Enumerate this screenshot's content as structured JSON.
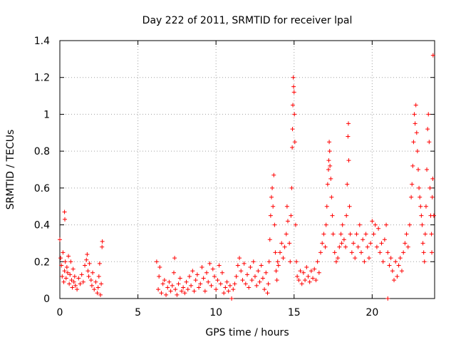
{
  "chart_data": {
    "type": "scatter",
    "title": "Day 222 of 2011, SRMTID for receiver lpal",
    "xlabel": "GPS time / hours",
    "ylabel": "SRMTID / TECUs",
    "xlim": [
      0,
      24
    ],
    "ylim": [
      0,
      1.4
    ],
    "xticks": [
      0,
      5,
      10,
      15,
      20
    ],
    "yticks": [
      0,
      0.2,
      0.4,
      0.6,
      0.8,
      1,
      1.2,
      1.4
    ],
    "ytick_labels": [
      "0",
      "0.2",
      "0.4",
      "0.6",
      "0.8",
      "1",
      "1.2",
      "1.4"
    ],
    "grid": true,
    "marker": "+",
    "color": "#ff0000",
    "series": [
      {
        "name": "SRMTID",
        "points": [
          [
            0.0,
            0.32
          ],
          [
            0.05,
            0.22
          ],
          [
            0.1,
            0.18
          ],
          [
            0.15,
            0.12
          ],
          [
            0.2,
            0.25
          ],
          [
            0.25,
            0.09
          ],
          [
            0.3,
            0.15
          ],
          [
            0.3,
            0.47
          ],
          [
            0.32,
            0.43
          ],
          [
            0.35,
            0.2
          ],
          [
            0.4,
            0.11
          ],
          [
            0.45,
            0.17
          ],
          [
            0.5,
            0.14
          ],
          [
            0.55,
            0.23
          ],
          [
            0.6,
            0.08
          ],
          [
            0.65,
            0.13
          ],
          [
            0.7,
            0.2
          ],
          [
            0.75,
            0.1
          ],
          [
            0.8,
            0.06
          ],
          [
            0.85,
            0.16
          ],
          [
            0.9,
            0.09
          ],
          [
            0.95,
            0.12
          ],
          [
            1.0,
            0.07
          ],
          [
            1.1,
            0.05
          ],
          [
            1.2,
            0.11
          ],
          [
            1.3,
            0.08
          ],
          [
            1.4,
            0.13
          ],
          [
            1.5,
            0.09
          ],
          [
            1.6,
            0.18
          ],
          [
            1.7,
            0.21
          ],
          [
            1.75,
            0.24
          ],
          [
            1.8,
            0.15
          ],
          [
            1.85,
            0.12
          ],
          [
            1.9,
            0.19
          ],
          [
            2.0,
            0.1
          ],
          [
            2.05,
            0.07
          ],
          [
            2.1,
            0.14
          ],
          [
            2.2,
            0.05
          ],
          [
            2.3,
            0.09
          ],
          [
            2.4,
            0.03
          ],
          [
            2.45,
            0.06
          ],
          [
            2.5,
            0.12
          ],
          [
            2.55,
            0.19
          ],
          [
            2.6,
            0.02
          ],
          [
            2.65,
            0.08
          ],
          [
            2.7,
            0.28
          ],
          [
            2.72,
            0.31
          ],
          [
            6.2,
            0.2
          ],
          [
            6.3,
            0.05
          ],
          [
            6.35,
            0.12
          ],
          [
            6.4,
            0.17
          ],
          [
            6.5,
            0.03
          ],
          [
            6.6,
            0.08
          ],
          [
            6.7,
            0.1
          ],
          [
            6.8,
            0.02
          ],
          [
            6.9,
            0.06
          ],
          [
            7.0,
            0.09
          ],
          [
            7.1,
            0.04
          ],
          [
            7.2,
            0.07
          ],
          [
            7.3,
            0.14
          ],
          [
            7.35,
            0.22
          ],
          [
            7.4,
            0.05
          ],
          [
            7.5,
            0.02
          ],
          [
            7.6,
            0.08
          ],
          [
            7.7,
            0.11
          ],
          [
            7.8,
            0.04
          ],
          [
            7.9,
            0.06
          ],
          [
            8.0,
            0.03
          ],
          [
            8.1,
            0.09
          ],
          [
            8.2,
            0.05
          ],
          [
            8.3,
            0.12
          ],
          [
            8.4,
            0.07
          ],
          [
            8.5,
            0.15
          ],
          [
            8.6,
            0.04
          ],
          [
            8.7,
            0.1
          ],
          [
            8.8,
            0.13
          ],
          [
            8.9,
            0.06
          ],
          [
            9.0,
            0.08
          ],
          [
            9.1,
            0.17
          ],
          [
            9.2,
            0.11
          ],
          [
            9.3,
            0.04
          ],
          [
            9.4,
            0.14
          ],
          [
            9.5,
            0.09
          ],
          [
            9.6,
            0.19
          ],
          [
            9.7,
            0.07
          ],
          [
            9.8,
            0.16
          ],
          [
            9.9,
            0.12
          ],
          [
            10.0,
            0.05
          ],
          [
            10.1,
            0.1
          ],
          [
            10.2,
            0.18
          ],
          [
            10.3,
            0.08
          ],
          [
            10.4,
            0.14
          ],
          [
            10.5,
            0.03
          ],
          [
            10.6,
            0.06
          ],
          [
            10.7,
            0.09
          ],
          [
            10.8,
            0.04
          ],
          [
            10.9,
            0.07
          ],
          [
            11.0,
            0.0
          ],
          [
            11.1,
            0.05
          ],
          [
            11.2,
            0.08
          ],
          [
            11.3,
            0.12
          ],
          [
            11.4,
            0.18
          ],
          [
            11.5,
            0.22
          ],
          [
            11.6,
            0.15
          ],
          [
            11.7,
            0.1
          ],
          [
            11.8,
            0.19
          ],
          [
            11.9,
            0.08
          ],
          [
            12.0,
            0.13
          ],
          [
            12.1,
            0.06
          ],
          [
            12.2,
            0.17
          ],
          [
            12.3,
            0.1
          ],
          [
            12.4,
            0.2
          ],
          [
            12.5,
            0.12
          ],
          [
            12.6,
            0.07
          ],
          [
            12.7,
            0.15
          ],
          [
            12.8,
            0.09
          ],
          [
            12.9,
            0.18
          ],
          [
            13.0,
            0.11
          ],
          [
            13.1,
            0.05
          ],
          [
            13.2,
            0.14
          ],
          [
            13.3,
            0.03
          ],
          [
            13.35,
            0.08
          ],
          [
            13.4,
            0.2
          ],
          [
            13.45,
            0.32
          ],
          [
            13.5,
            0.45
          ],
          [
            13.55,
            0.55
          ],
          [
            13.6,
            0.6
          ],
          [
            13.65,
            0.5
          ],
          [
            13.7,
            0.67
          ],
          [
            13.75,
            0.4
          ],
          [
            13.8,
            0.25
          ],
          [
            13.85,
            0.15
          ],
          [
            13.9,
            0.1
          ],
          [
            13.95,
            0.2
          ],
          [
            14.0,
            0.18
          ],
          [
            14.1,
            0.25
          ],
          [
            14.2,
            0.3
          ],
          [
            14.3,
            0.22
          ],
          [
            14.4,
            0.28
          ],
          [
            14.5,
            0.35
          ],
          [
            14.55,
            0.5
          ],
          [
            14.6,
            0.42
          ],
          [
            14.7,
            0.3
          ],
          [
            14.75,
            0.2
          ],
          [
            14.8,
            0.45
          ],
          [
            14.85,
            0.6
          ],
          [
            14.88,
            0.82
          ],
          [
            14.9,
            0.92
          ],
          [
            14.92,
            1.05
          ],
          [
            14.95,
            1.2
          ],
          [
            14.97,
            1.15
          ],
          [
            15.0,
            1.12
          ],
          [
            15.02,
            1.0
          ],
          [
            15.05,
            0.85
          ],
          [
            15.1,
            0.4
          ],
          [
            15.15,
            0.2
          ],
          [
            15.2,
            0.12
          ],
          [
            15.3,
            0.1
          ],
          [
            15.4,
            0.15
          ],
          [
            15.5,
            0.08
          ],
          [
            15.6,
            0.14
          ],
          [
            15.7,
            0.1
          ],
          [
            15.8,
            0.17
          ],
          [
            15.9,
            0.12
          ],
          [
            16.0,
            0.09
          ],
          [
            16.1,
            0.15
          ],
          [
            16.2,
            0.11
          ],
          [
            16.3,
            0.16
          ],
          [
            16.4,
            0.1
          ],
          [
            16.5,
            0.2
          ],
          [
            16.6,
            0.14
          ],
          [
            16.7,
            0.25
          ],
          [
            16.8,
            0.3
          ],
          [
            16.9,
            0.35
          ],
          [
            17.0,
            0.28
          ],
          [
            17.05,
            0.4
          ],
          [
            17.1,
            0.5
          ],
          [
            17.15,
            0.62
          ],
          [
            17.2,
            0.7
          ],
          [
            17.22,
            0.75
          ],
          [
            17.25,
            0.85
          ],
          [
            17.28,
            0.8
          ],
          [
            17.3,
            0.72
          ],
          [
            17.35,
            0.65
          ],
          [
            17.4,
            0.55
          ],
          [
            17.45,
            0.45
          ],
          [
            17.5,
            0.35
          ],
          [
            17.6,
            0.25
          ],
          [
            17.7,
            0.2
          ],
          [
            17.8,
            0.22
          ],
          [
            17.9,
            0.28
          ],
          [
            18.0,
            0.35
          ],
          [
            18.05,
            0.3
          ],
          [
            18.1,
            0.4
          ],
          [
            18.2,
            0.32
          ],
          [
            18.3,
            0.28
          ],
          [
            18.35,
            0.45
          ],
          [
            18.4,
            0.62
          ],
          [
            18.45,
            0.88
          ],
          [
            18.48,
            0.95
          ],
          [
            18.5,
            0.75
          ],
          [
            18.55,
            0.5
          ],
          [
            18.6,
            0.35
          ],
          [
            18.7,
            0.25
          ],
          [
            18.8,
            0.3
          ],
          [
            18.9,
            0.22
          ],
          [
            19.0,
            0.35
          ],
          [
            19.1,
            0.28
          ],
          [
            19.2,
            0.4
          ],
          [
            19.3,
            0.25
          ],
          [
            19.4,
            0.32
          ],
          [
            19.5,
            0.2
          ],
          [
            19.6,
            0.35
          ],
          [
            19.7,
            0.28
          ],
          [
            19.8,
            0.22
          ],
          [
            19.9,
            0.3
          ],
          [
            20.0,
            0.42
          ],
          [
            20.1,
            0.35
          ],
          [
            20.2,
            0.4
          ],
          [
            20.3,
            0.28
          ],
          [
            20.4,
            0.38
          ],
          [
            20.5,
            0.25
          ],
          [
            20.6,
            0.3
          ],
          [
            20.7,
            0.2
          ],
          [
            20.8,
            0.32
          ],
          [
            20.9,
            0.4
          ],
          [
            21.0,
            0.0
          ],
          [
            21.0,
            0.25
          ],
          [
            21.1,
            0.18
          ],
          [
            21.2,
            0.22
          ],
          [
            21.3,
            0.15
          ],
          [
            21.4,
            0.1
          ],
          [
            21.5,
            0.2
          ],
          [
            21.6,
            0.12
          ],
          [
            21.7,
            0.18
          ],
          [
            21.8,
            0.22
          ],
          [
            21.9,
            0.15
          ],
          [
            22.0,
            0.25
          ],
          [
            22.1,
            0.3
          ],
          [
            22.2,
            0.35
          ],
          [
            22.3,
            0.28
          ],
          [
            22.4,
            0.4
          ],
          [
            22.5,
            0.55
          ],
          [
            22.55,
            0.62
          ],
          [
            22.6,
            0.72
          ],
          [
            22.65,
            0.85
          ],
          [
            22.7,
            1.0
          ],
          [
            22.75,
            0.95
          ],
          [
            22.8,
            1.05
          ],
          [
            22.85,
            0.9
          ],
          [
            22.9,
            0.8
          ],
          [
            22.95,
            0.7
          ],
          [
            23.0,
            0.6
          ],
          [
            23.05,
            0.55
          ],
          [
            23.1,
            0.5
          ],
          [
            23.15,
            0.45
          ],
          [
            23.2,
            0.4
          ],
          [
            23.25,
            0.3
          ],
          [
            23.3,
            0.25
          ],
          [
            23.35,
            0.2
          ],
          [
            23.4,
            0.35
          ],
          [
            23.45,
            0.5
          ],
          [
            23.5,
            0.7
          ],
          [
            23.55,
            0.92
          ],
          [
            23.6,
            1.0
          ],
          [
            23.65,
            0.85
          ],
          [
            23.7,
            0.6
          ],
          [
            23.75,
            0.45
          ],
          [
            23.8,
            0.35
          ],
          [
            23.82,
            0.25
          ],
          [
            23.85,
            0.55
          ],
          [
            23.88,
            0.65
          ],
          [
            23.9,
            1.32
          ],
          [
            23.95,
            0.45
          ]
        ]
      }
    ]
  }
}
